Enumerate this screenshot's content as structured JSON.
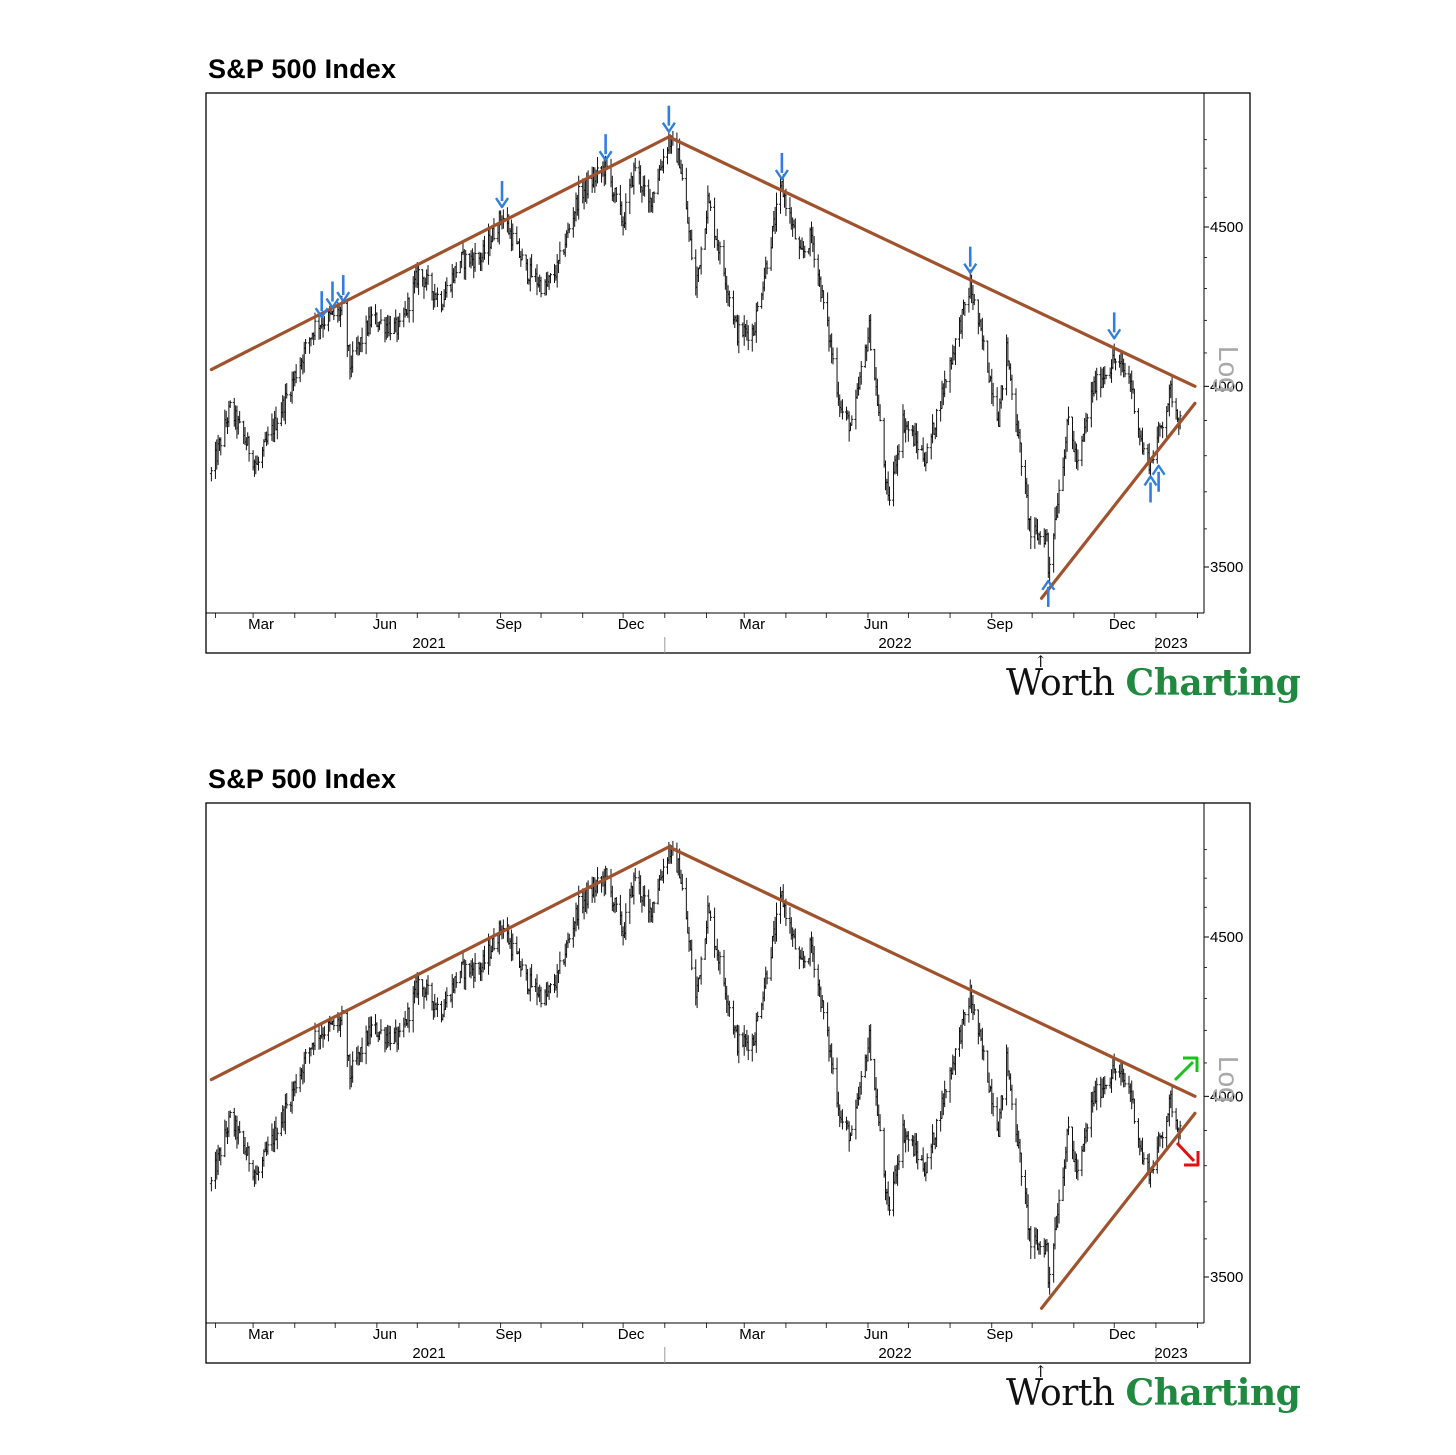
{
  "brand": {
    "word1": "Worth",
    "word2": "Charting"
  },
  "colors": {
    "price": "#111111",
    "trendline": "#a0522d",
    "marker": "#2f7fe0",
    "breakout_up": "#19c21a",
    "breakout_down": "#e01010"
  },
  "chart_data": [
    {
      "type": "bar",
      "subtype": "ohlc-price",
      "title": "S&P 500 Index",
      "scale_label": "Log",
      "y_scale": "log",
      "ylim": [
        3350,
        4900
      ],
      "yticks": [
        "4500",
        "4000",
        "3500"
      ],
      "x_month_labels": [
        "Mar",
        "Jun",
        "Sep",
        "Dec",
        "Mar",
        "Jun",
        "Sep",
        "Dec"
      ],
      "x_year_labels": [
        "2021",
        "2022",
        "2023"
      ],
      "grid": false,
      "price_anchors": [
        [
          "2021-01-29",
          3750
        ],
        [
          "2021-02-12",
          3935
        ],
        [
          "2021-03-04",
          3770
        ],
        [
          "2021-03-26",
          3970
        ],
        [
          "2021-04-16",
          4185
        ],
        [
          "2021-05-07",
          4230
        ],
        [
          "2021-05-12",
          4060
        ],
        [
          "2021-05-28",
          4205
        ],
        [
          "2021-06-18",
          4170
        ],
        [
          "2021-07-02",
          4350
        ],
        [
          "2021-07-19",
          4260
        ],
        [
          "2021-08-02",
          4390
        ],
        [
          "2021-08-18",
          4400
        ],
        [
          "2021-09-02",
          4540
        ],
        [
          "2021-09-20",
          4360
        ],
        [
          "2021-10-04",
          4300
        ],
        [
          "2021-10-13",
          4360
        ],
        [
          "2021-10-29",
          4605
        ],
        [
          "2021-11-18",
          4705
        ],
        [
          "2021-12-01",
          4515
        ],
        [
          "2021-12-10",
          4710
        ],
        [
          "2021-12-20",
          4570
        ],
        [
          "2022-01-04",
          4800
        ],
        [
          "2022-01-12",
          4730
        ],
        [
          "2022-01-24",
          4300
        ],
        [
          "2022-02-02",
          4590
        ],
        [
          "2022-02-24",
          4160
        ],
        [
          "2022-03-08",
          4170
        ],
        [
          "2022-03-29",
          4635
        ],
        [
          "2022-04-12",
          4400
        ],
        [
          "2022-04-20",
          4470
        ],
        [
          "2022-05-12",
          3930
        ],
        [
          "2022-05-20",
          3880
        ],
        [
          "2022-06-02",
          4175
        ],
        [
          "2022-06-16",
          3667
        ],
        [
          "2022-06-27",
          3900
        ],
        [
          "2022-07-14",
          3790
        ],
        [
          "2022-08-16",
          4305
        ],
        [
          "2022-09-06",
          3910
        ],
        [
          "2022-09-12",
          4110
        ],
        [
          "2022-09-30",
          3585
        ],
        [
          "2022-10-12",
          3580
        ],
        [
          "2022-10-13",
          3490
        ],
        [
          "2022-10-28",
          3900
        ],
        [
          "2022-11-04",
          3770
        ],
        [
          "2022-11-15",
          3990
        ],
        [
          "2022-12-01",
          4080
        ],
        [
          "2022-12-13",
          4020
        ],
        [
          "2022-12-22",
          3820
        ],
        [
          "2022-12-28",
          3780
        ],
        [
          "2023-01-06",
          3900
        ],
        [
          "2023-01-12",
          3985
        ],
        [
          "2023-01-19",
          3900
        ]
      ],
      "trendlines": [
        {
          "from": [
            "2021-01-29",
            4050
          ],
          "to": [
            "2022-01-04",
            4810
          ]
        },
        {
          "from": [
            "2022-01-04",
            4810
          ],
          "to": [
            "2023-01-30",
            4000
          ]
        },
        {
          "from": [
            "2022-10-08",
            3420
          ],
          "to": [
            "2023-01-30",
            3950
          ]
        }
      ],
      "markers": [
        {
          "type": "down",
          "date": "2021-04-21",
          "price": 4185
        },
        {
          "type": "down",
          "date": "2021-04-29",
          "price": 4215
        },
        {
          "type": "down",
          "date": "2021-05-07",
          "price": 4235
        },
        {
          "type": "down",
          "date": "2021-09-02",
          "price": 4540
        },
        {
          "type": "down",
          "date": "2021-11-18",
          "price": 4700
        },
        {
          "type": "down",
          "date": "2022-01-04",
          "price": 4800
        },
        {
          "type": "down",
          "date": "2022-03-29",
          "price": 4635
        },
        {
          "type": "down",
          "date": "2022-08-16",
          "price": 4325
        },
        {
          "type": "down",
          "date": "2022-12-01",
          "price": 4120
        },
        {
          "type": "up",
          "date": "2022-10-13",
          "price": 3490
        },
        {
          "type": "up",
          "date": "2022-12-28",
          "price": 3770
        },
        {
          "type": "up",
          "date": "2023-01-03",
          "price": 3800
        }
      ]
    },
    {
      "type": "bar",
      "subtype": "ohlc-price",
      "title": "S&P 500 Index",
      "scale_label": "Log",
      "y_scale": "log",
      "ylim": [
        3350,
        4900
      ],
      "yticks": [
        "4500",
        "4000",
        "3500"
      ],
      "x_month_labels": [
        "Mar",
        "Jun",
        "Sep",
        "Dec",
        "Mar",
        "Jun",
        "Sep",
        "Dec"
      ],
      "x_year_labels": [
        "2021",
        "2022",
        "2023"
      ],
      "grid": false,
      "same_price_series_as_chart": 1,
      "trendlines": [
        {
          "from": [
            "2021-01-29",
            4050
          ],
          "to": [
            "2022-01-04",
            4810
          ]
        },
        {
          "from": [
            "2022-01-04",
            4810
          ],
          "to": [
            "2023-01-30",
            4000
          ]
        },
        {
          "from": [
            "2022-10-08",
            3420
          ],
          "to": [
            "2023-01-30",
            3950
          ]
        }
      ],
      "breakout_arrows": [
        {
          "direction": "up",
          "color": "green"
        },
        {
          "direction": "down",
          "color": "red"
        }
      ]
    }
  ]
}
